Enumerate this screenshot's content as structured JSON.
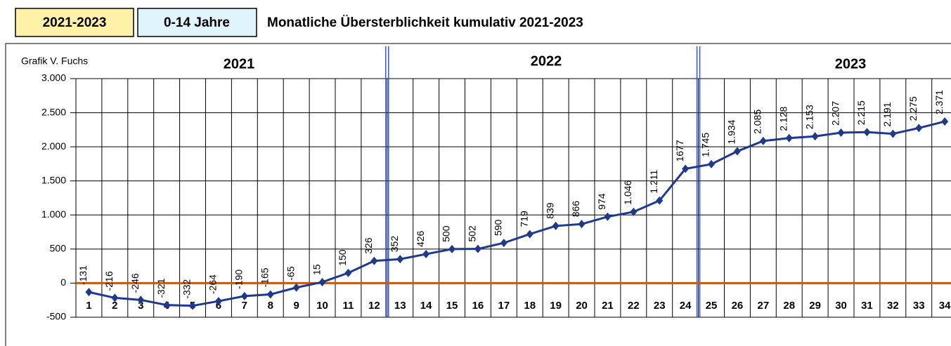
{
  "chart_data": {
    "type": "line",
    "header_boxes": [
      "2021-2023",
      "0-14 Jahre"
    ],
    "title": "Monatliche Übersterblichkeit kumulativ 2021-2023",
    "source": "Grafik V. Fuchs",
    "year_labels": [
      "2021",
      "2022",
      "2023"
    ],
    "categories": [
      "1",
      "2",
      "3",
      "4",
      "5",
      "6",
      "7",
      "8",
      "9",
      "10",
      "11",
      "12",
      "13",
      "14",
      "15",
      "16",
      "17",
      "18",
      "19",
      "20",
      "21",
      "22",
      "23",
      "24",
      "25",
      "26",
      "27",
      "28",
      "29",
      "30",
      "31",
      "32",
      "33",
      "34"
    ],
    "series": [
      {
        "name": "kumulativ",
        "color": "#1f3a8a",
        "values": [
          -131,
          -216,
          -246,
          -321,
          -332,
          -264,
          -190,
          -165,
          -65,
          15,
          150,
          326,
          352,
          426,
          500,
          502,
          590,
          719,
          839,
          866,
          974,
          1046,
          1211,
          1677,
          1745,
          1934,
          2085,
          2128,
          2153,
          2207,
          2215,
          2191,
          2275,
          2371
        ],
        "value_labels": [
          "-131",
          "-216",
          "-246",
          "-321",
          "-332",
          "-264",
          "-190",
          "-165",
          "-65",
          "15",
          "150",
          "326",
          "352",
          "426",
          "500",
          "502",
          "590",
          "719",
          "839",
          "866",
          "974",
          "1.046",
          "1.211",
          "1677",
          "1.745",
          "1.934",
          "2.085",
          "2.128",
          "2.153",
          "2.207",
          "2.215",
          "2.191",
          "2.275",
          "2.371"
        ]
      }
    ],
    "ylim": [
      -500,
      3000
    ],
    "yticks": [
      -500,
      0,
      500,
      {
        "value": 1000,
        "label": "1.000"
      },
      {
        "value": 1500,
        "label": "1.500"
      },
      {
        "value": 2000,
        "label": "2.000"
      },
      {
        "value": 2500,
        "label": "2.500"
      },
      {
        "value": 3000,
        "label": "3.000"
      }
    ],
    "grid": true
  }
}
